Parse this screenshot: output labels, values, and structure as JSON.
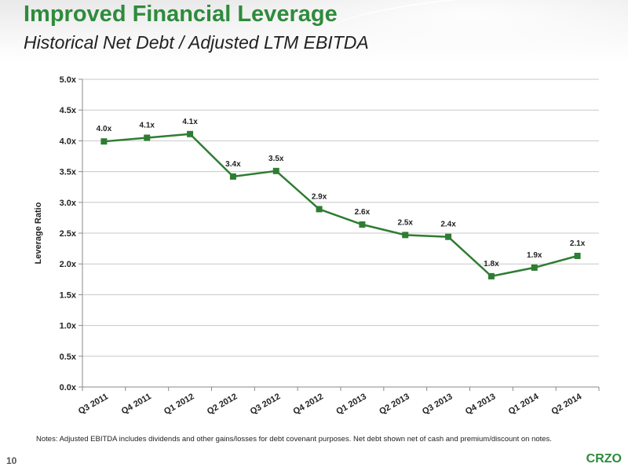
{
  "header": {
    "title": "Improved Financial Leverage",
    "subtitle": "Historical Net Debt / Adjusted LTM EBITDA"
  },
  "chart_data": {
    "type": "line",
    "title": "",
    "xlabel": "",
    "ylabel": "Leverage Ratio",
    "categories": [
      "Q3 2011",
      "Q4 2011",
      "Q1 2012",
      "Q2 2012",
      "Q3 2012",
      "Q4 2012",
      "Q1 2013",
      "Q2 2013",
      "Q3 2013",
      "Q4 2013",
      "Q1 2014",
      "Q2 2014"
    ],
    "series": [
      {
        "values": [
          3.99,
          4.05,
          4.11,
          3.42,
          3.51,
          2.89,
          2.64,
          2.47,
          2.44,
          1.8,
          1.94,
          2.13
        ],
        "labels": [
          "4.0x",
          "4.1x",
          "4.1x",
          "3.4x",
          "3.5x",
          "2.9x",
          "2.6x",
          "2.5x",
          "2.4x",
          "1.8x",
          "1.9x",
          "2.1x"
        ],
        "color": "#2e7d32"
      }
    ],
    "ylim": [
      0,
      5
    ],
    "yticks": [
      0,
      0.5,
      1,
      1.5,
      2,
      2.5,
      3,
      3.5,
      4,
      4.5,
      5
    ],
    "ytick_labels": [
      "0.0x",
      "0.5x",
      "1.0x",
      "1.5x",
      "2.0x",
      "2.5x",
      "3.0x",
      "3.5x",
      "4.0x",
      "4.5x",
      "5.0x"
    ],
    "grid": true,
    "legend": false
  },
  "footer": {
    "note": "Notes: Adjusted EBITDA includes dividends and other gains/losses for debt covenant purposes.  Net debt shown net of cash and premium/discount on notes.",
    "page_number": "10",
    "brand": "CRZO"
  },
  "colors": {
    "accent_green": "#2e8b3c",
    "line_green": "#2e7d32",
    "grid": "#c8c8c8"
  }
}
